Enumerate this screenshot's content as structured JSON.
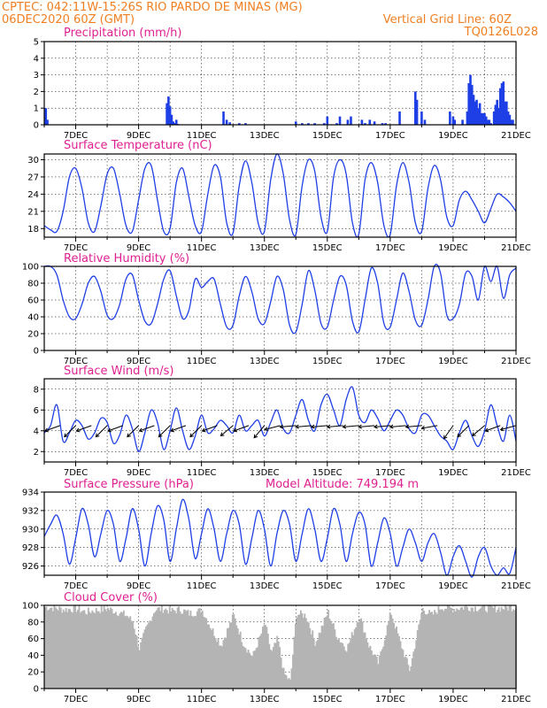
{
  "header": {
    "line1_left": "CPTEC:   042:11W-15:26S  RIO PARDO DE MINAS (MG)",
    "line2_left": "06DEC2020 60Z (GMT)",
    "line2_right": "Vertical Grid Line: 60Z",
    "line3_right": "TQ0126L028"
  },
  "x_axis": {
    "start_day": 6,
    "end_day": 21,
    "tick_labels": [
      "7DEC",
      "9DEC",
      "11DEC",
      "13DEC",
      "15DEC",
      "17DEC",
      "19DEC",
      "21DEC"
    ],
    "tick_days": [
      7,
      9,
      11,
      13,
      15,
      17,
      19,
      21
    ]
  },
  "chart_data": [
    {
      "id": "precipitation",
      "type": "bar",
      "title": "Precipitation (mm/h)",
      "ylim": [
        0,
        5
      ],
      "yticks": [
        0,
        1,
        2,
        3,
        4,
        5
      ],
      "x": [
        6.05,
        6.1,
        9.9,
        9.95,
        10.0,
        10.05,
        10.1,
        10.15,
        10.2,
        10.25,
        11.7,
        11.8,
        11.9,
        12.2,
        12.4,
        14.0,
        14.2,
        14.4,
        14.6,
        14.9,
        15.0,
        15.3,
        15.4,
        15.65,
        15.75,
        16.1,
        16.2,
        16.35,
        16.5,
        16.75,
        16.85,
        17.3,
        17.8,
        17.85,
        18.0,
        18.1,
        18.9,
        19.0,
        19.05,
        19.3,
        19.45,
        19.5,
        19.55,
        19.6,
        19.65,
        19.7,
        19.75,
        19.8,
        19.85,
        19.9,
        19.95,
        20.0,
        20.05,
        20.1,
        20.15,
        20.2,
        20.3,
        20.35,
        20.4,
        20.45,
        20.5,
        20.55,
        20.6,
        20.65,
        20.7,
        20.75,
        20.8,
        20.85,
        20.9
      ],
      "values": [
        1.0,
        0.3,
        1.3,
        1.7,
        1.1,
        0.6,
        0.2,
        0.1,
        0.3,
        0.05,
        0.8,
        0.3,
        0.15,
        0.1,
        0.1,
        0.2,
        0.1,
        0.1,
        0.1,
        0.1,
        0.5,
        0.1,
        0.5,
        0.3,
        0.5,
        0.3,
        0.1,
        0.3,
        0.2,
        0.1,
        0.1,
        0.8,
        2.0,
        1.5,
        0.8,
        0.3,
        0.8,
        0.5,
        0.3,
        0.3,
        0.8,
        2.5,
        3.0,
        2.4,
        1.8,
        1.4,
        1.5,
        1.0,
        1.3,
        0.7,
        0.7,
        0.7,
        0.5,
        0.3,
        0.3,
        0.1,
        0.8,
        1.2,
        1.5,
        1.0,
        2.2,
        2.5,
        2.6,
        1.4,
        1.4,
        0.8,
        0.6,
        0.3,
        0.3
      ]
    },
    {
      "id": "temperature",
      "type": "line",
      "title": "Surface Temperature (nC)",
      "ylim": [
        16.5,
        31
      ],
      "yticks": [
        18,
        21,
        24,
        27,
        30
      ],
      "x": [
        6.0,
        6.2,
        6.4,
        6.6,
        6.8,
        7.0,
        7.2,
        7.4,
        7.6,
        7.8,
        8.0,
        8.2,
        8.4,
        8.6,
        8.8,
        9.0,
        9.2,
        9.4,
        9.6,
        9.8,
        10.0,
        10.2,
        10.4,
        10.6,
        10.8,
        11.0,
        11.2,
        11.4,
        11.6,
        11.8,
        12.0,
        12.2,
        12.4,
        12.6,
        12.8,
        13.0,
        13.2,
        13.4,
        13.6,
        13.8,
        14.0,
        14.2,
        14.4,
        14.6,
        14.8,
        15.0,
        15.2,
        15.4,
        15.6,
        15.8,
        16.0,
        16.2,
        16.4,
        16.6,
        16.8,
        17.0,
        17.2,
        17.4,
        17.6,
        17.8,
        18.0,
        18.2,
        18.4,
        18.6,
        18.8,
        19.0,
        19.2,
        19.4,
        19.6,
        19.8,
        20.0,
        20.2,
        20.4,
        20.6,
        20.8,
        21.0
      ],
      "values": [
        18.5,
        17.8,
        17.5,
        21.0,
        27.0,
        28.5,
        25.0,
        19.0,
        17.5,
        22.0,
        27.5,
        28.5,
        24.0,
        18.5,
        17.5,
        23.0,
        28.5,
        29.0,
        23.0,
        17.5,
        18.0,
        26.0,
        28.5,
        23.5,
        18.5,
        17.5,
        24.0,
        29.0,
        27.0,
        19.0,
        17.2,
        25.5,
        29.8,
        26.0,
        19.0,
        17.5,
        26.5,
        31.0,
        27.5,
        19.5,
        17.0,
        25.5,
        30.0,
        28.0,
        20.0,
        17.5,
        27.0,
        30.0,
        27.5,
        19.0,
        17.0,
        26.5,
        29.5,
        26.0,
        18.5,
        17.0,
        25.5,
        29.5,
        26.0,
        19.0,
        17.5,
        25.0,
        29.0,
        26.5,
        20.0,
        18.5,
        23.0,
        24.5,
        23.0,
        21.0,
        19.0,
        21.5,
        24.0,
        23.5,
        22.5,
        21.0
      ]
    },
    {
      "id": "humidity",
      "type": "line",
      "title": "Relative Humidity (%)",
      "ylim": [
        0,
        100
      ],
      "yticks": [
        0,
        20,
        40,
        60,
        80,
        100
      ],
      "x": [
        6.0,
        6.2,
        6.4,
        6.6,
        6.8,
        7.0,
        7.2,
        7.4,
        7.6,
        7.8,
        8.0,
        8.2,
        8.4,
        8.6,
        8.8,
        9.0,
        9.2,
        9.4,
        9.6,
        9.8,
        10.0,
        10.2,
        10.4,
        10.6,
        10.8,
        11.0,
        11.2,
        11.4,
        11.6,
        11.8,
        12.0,
        12.2,
        12.4,
        12.6,
        12.8,
        13.0,
        13.2,
        13.4,
        13.6,
        13.8,
        14.0,
        14.2,
        14.4,
        14.6,
        14.8,
        15.0,
        15.2,
        15.4,
        15.6,
        15.8,
        16.0,
        16.2,
        16.4,
        16.6,
        16.8,
        17.0,
        17.2,
        17.4,
        17.6,
        17.8,
        18.0,
        18.2,
        18.4,
        18.6,
        18.8,
        19.0,
        19.2,
        19.4,
        19.6,
        19.8,
        20.0,
        20.2,
        20.4,
        20.6,
        20.8,
        21.0
      ],
      "values": [
        100,
        100,
        90,
        60,
        40,
        38,
        55,
        80,
        88,
        70,
        42,
        38,
        55,
        85,
        90,
        60,
        35,
        32,
        55,
        85,
        95,
        65,
        38,
        48,
        85,
        75,
        82,
        85,
        55,
        28,
        30,
        65,
        88,
        70,
        38,
        32,
        58,
        88,
        72,
        30,
        22,
        55,
        95,
        72,
        32,
        28,
        60,
        88,
        78,
        35,
        22,
        60,
        98,
        80,
        32,
        28,
        60,
        92,
        70,
        36,
        30,
        60,
        100,
        92,
        42,
        38,
        55,
        92,
        88,
        60,
        100,
        82,
        100,
        62,
        90,
        98
      ]
    },
    {
      "id": "wind",
      "type": "line",
      "title": "Surface Wind (m/s)",
      "ylim": [
        1,
        9
      ],
      "yticks": [
        2,
        4,
        6,
        8
      ],
      "x": [
        6.0,
        6.2,
        6.4,
        6.6,
        6.8,
        7.0,
        7.2,
        7.4,
        7.6,
        7.8,
        8.0,
        8.2,
        8.4,
        8.6,
        8.8,
        9.0,
        9.2,
        9.4,
        9.6,
        9.8,
        10.0,
        10.2,
        10.4,
        10.6,
        10.8,
        11.0,
        11.2,
        11.4,
        11.6,
        11.8,
        12.0,
        12.2,
        12.4,
        12.6,
        12.8,
        13.0,
        13.2,
        13.4,
        13.6,
        13.8,
        14.0,
        14.2,
        14.4,
        14.6,
        14.8,
        15.0,
        15.2,
        15.4,
        15.6,
        15.8,
        16.0,
        16.2,
        16.4,
        16.6,
        16.8,
        17.0,
        17.2,
        17.4,
        17.6,
        17.8,
        18.0,
        18.2,
        18.4,
        18.6,
        18.8,
        19.0,
        19.2,
        19.4,
        19.6,
        19.8,
        20.0,
        20.2,
        20.4,
        20.6,
        20.8,
        21.0
      ],
      "values": [
        3.8,
        4.5,
        6.5,
        3.0,
        3.8,
        5.0,
        4.5,
        3.2,
        3.8,
        5.2,
        4.8,
        2.8,
        3.6,
        5.5,
        4.2,
        2.0,
        3.8,
        6.0,
        4.8,
        2.2,
        4.0,
        6.2,
        4.0,
        2.2,
        3.5,
        5.5,
        3.8,
        4.2,
        5.0,
        4.5,
        3.8,
        5.5,
        4.0,
        4.5,
        5.0,
        3.5,
        4.8,
        6.0,
        4.2,
        3.8,
        5.5,
        7.0,
        5.0,
        4.0,
        6.5,
        7.5,
        6.0,
        4.5,
        7.0,
        8.2,
        5.5,
        4.8,
        6.0,
        5.2,
        4.0,
        5.0,
        6.0,
        5.5,
        4.2,
        3.8,
        5.5,
        5.5,
        4.5,
        3.5,
        3.0,
        2.2,
        3.8,
        5.0,
        3.5,
        2.5,
        4.0,
        6.5,
        4.5,
        3.0,
        5.5,
        3.0
      ],
      "arrows_x": [
        6.5,
        7.0,
        7.5,
        8.0,
        8.5,
        9.0,
        9.5,
        10.0,
        10.5,
        11.0,
        11.5,
        12.0,
        12.5,
        13.0,
        13.5,
        14.0,
        14.5,
        15.0,
        15.5,
        16.0,
        16.5,
        17.0,
        17.5,
        18.0,
        18.5,
        19.0,
        19.5,
        20.0,
        20.5,
        21.0
      ],
      "arrows_dir_deg": [
        200,
        225,
        200,
        225,
        200,
        225,
        200,
        225,
        200,
        225,
        200,
        220,
        200,
        230,
        195,
        185,
        185,
        185,
        185,
        185,
        185,
        185,
        185,
        185,
        190,
        235,
        225,
        220,
        200,
        195
      ]
    },
    {
      "id": "pressure",
      "type": "line",
      "title": "Surface Pressure (hPa)",
      "subtitle": "Model Altitude: 749.194 m",
      "ylim": [
        925,
        934
      ],
      "yticks": [
        926,
        928,
        930,
        932,
        934
      ],
      "x": [
        6.0,
        6.2,
        6.4,
        6.6,
        6.8,
        7.0,
        7.2,
        7.4,
        7.6,
        7.8,
        8.0,
        8.2,
        8.4,
        8.6,
        8.8,
        9.0,
        9.2,
        9.4,
        9.6,
        9.8,
        10.0,
        10.2,
        10.4,
        10.6,
        10.8,
        11.0,
        11.2,
        11.4,
        11.6,
        11.8,
        12.0,
        12.2,
        12.4,
        12.6,
        12.8,
        13.0,
        13.2,
        13.4,
        13.6,
        13.8,
        14.0,
        14.2,
        14.4,
        14.6,
        14.8,
        15.0,
        15.2,
        15.4,
        15.6,
        15.8,
        16.0,
        16.2,
        16.4,
        16.6,
        16.8,
        17.0,
        17.2,
        17.4,
        17.6,
        17.8,
        18.0,
        18.2,
        18.4,
        18.6,
        18.8,
        19.0,
        19.2,
        19.4,
        19.6,
        19.8,
        20.0,
        20.2,
        20.4,
        20.6,
        20.8,
        21.0
      ],
      "values": [
        929.2,
        930.5,
        931.5,
        929.5,
        926.2,
        929.0,
        932.2,
        930.5,
        927.0,
        929.5,
        932.0,
        930.5,
        926.5,
        929.0,
        932.2,
        930.0,
        926.0,
        929.5,
        932.5,
        931.0,
        926.5,
        930.0,
        933.2,
        931.0,
        926.8,
        929.5,
        932.2,
        930.0,
        926.5,
        929.5,
        932.0,
        930.5,
        926.2,
        929.0,
        932.0,
        930.0,
        926.0,
        929.5,
        932.0,
        930.5,
        926.5,
        929.5,
        932.2,
        930.0,
        926.5,
        929.0,
        932.2,
        930.5,
        926.5,
        929.5,
        931.8,
        930.5,
        926.0,
        928.5,
        931.2,
        929.5,
        926.0,
        928.0,
        930.0,
        928.5,
        926.5,
        928.5,
        929.5,
        927.5,
        925.0,
        927.0,
        928.2,
        926.5,
        924.8,
        927.0,
        928.0,
        926.0,
        925.0,
        925.8,
        925.2,
        928.0
      ]
    },
    {
      "id": "cloud",
      "type": "bar",
      "title": "Cloud Cover (%)",
      "ylim": [
        0,
        100
      ],
      "yticks": [
        0,
        20,
        40,
        60,
        80,
        100
      ],
      "profile_x": [
        6.0,
        6.3,
        6.6,
        7.0,
        7.3,
        7.6,
        8.0,
        8.3,
        8.6,
        8.8,
        9.0,
        9.2,
        9.5,
        9.8,
        10.0,
        10.3,
        10.6,
        11.0,
        11.3,
        11.6,
        12.0,
        12.3,
        12.6,
        13.0,
        13.2,
        13.4,
        13.6,
        13.8,
        14.0,
        14.3,
        14.6,
        15.0,
        15.3,
        15.6,
        16.0,
        16.3,
        16.6,
        17.0,
        17.3,
        17.6,
        18.0,
        18.3,
        18.6,
        19.0,
        19.4,
        19.8,
        20.2,
        20.6,
        21.0
      ],
      "profile_values": [
        98,
        97,
        95,
        96,
        92,
        94,
        96,
        92,
        88,
        80,
        48,
        70,
        95,
        96,
        93,
        95,
        90,
        94,
        72,
        52,
        88,
        55,
        38,
        78,
        42,
        60,
        18,
        8,
        90,
        88,
        55,
        92,
        62,
        48,
        88,
        52,
        30,
        92,
        55,
        22,
        96,
        88,
        98,
        96,
        98,
        97,
        96,
        97,
        98
      ]
    }
  ]
}
